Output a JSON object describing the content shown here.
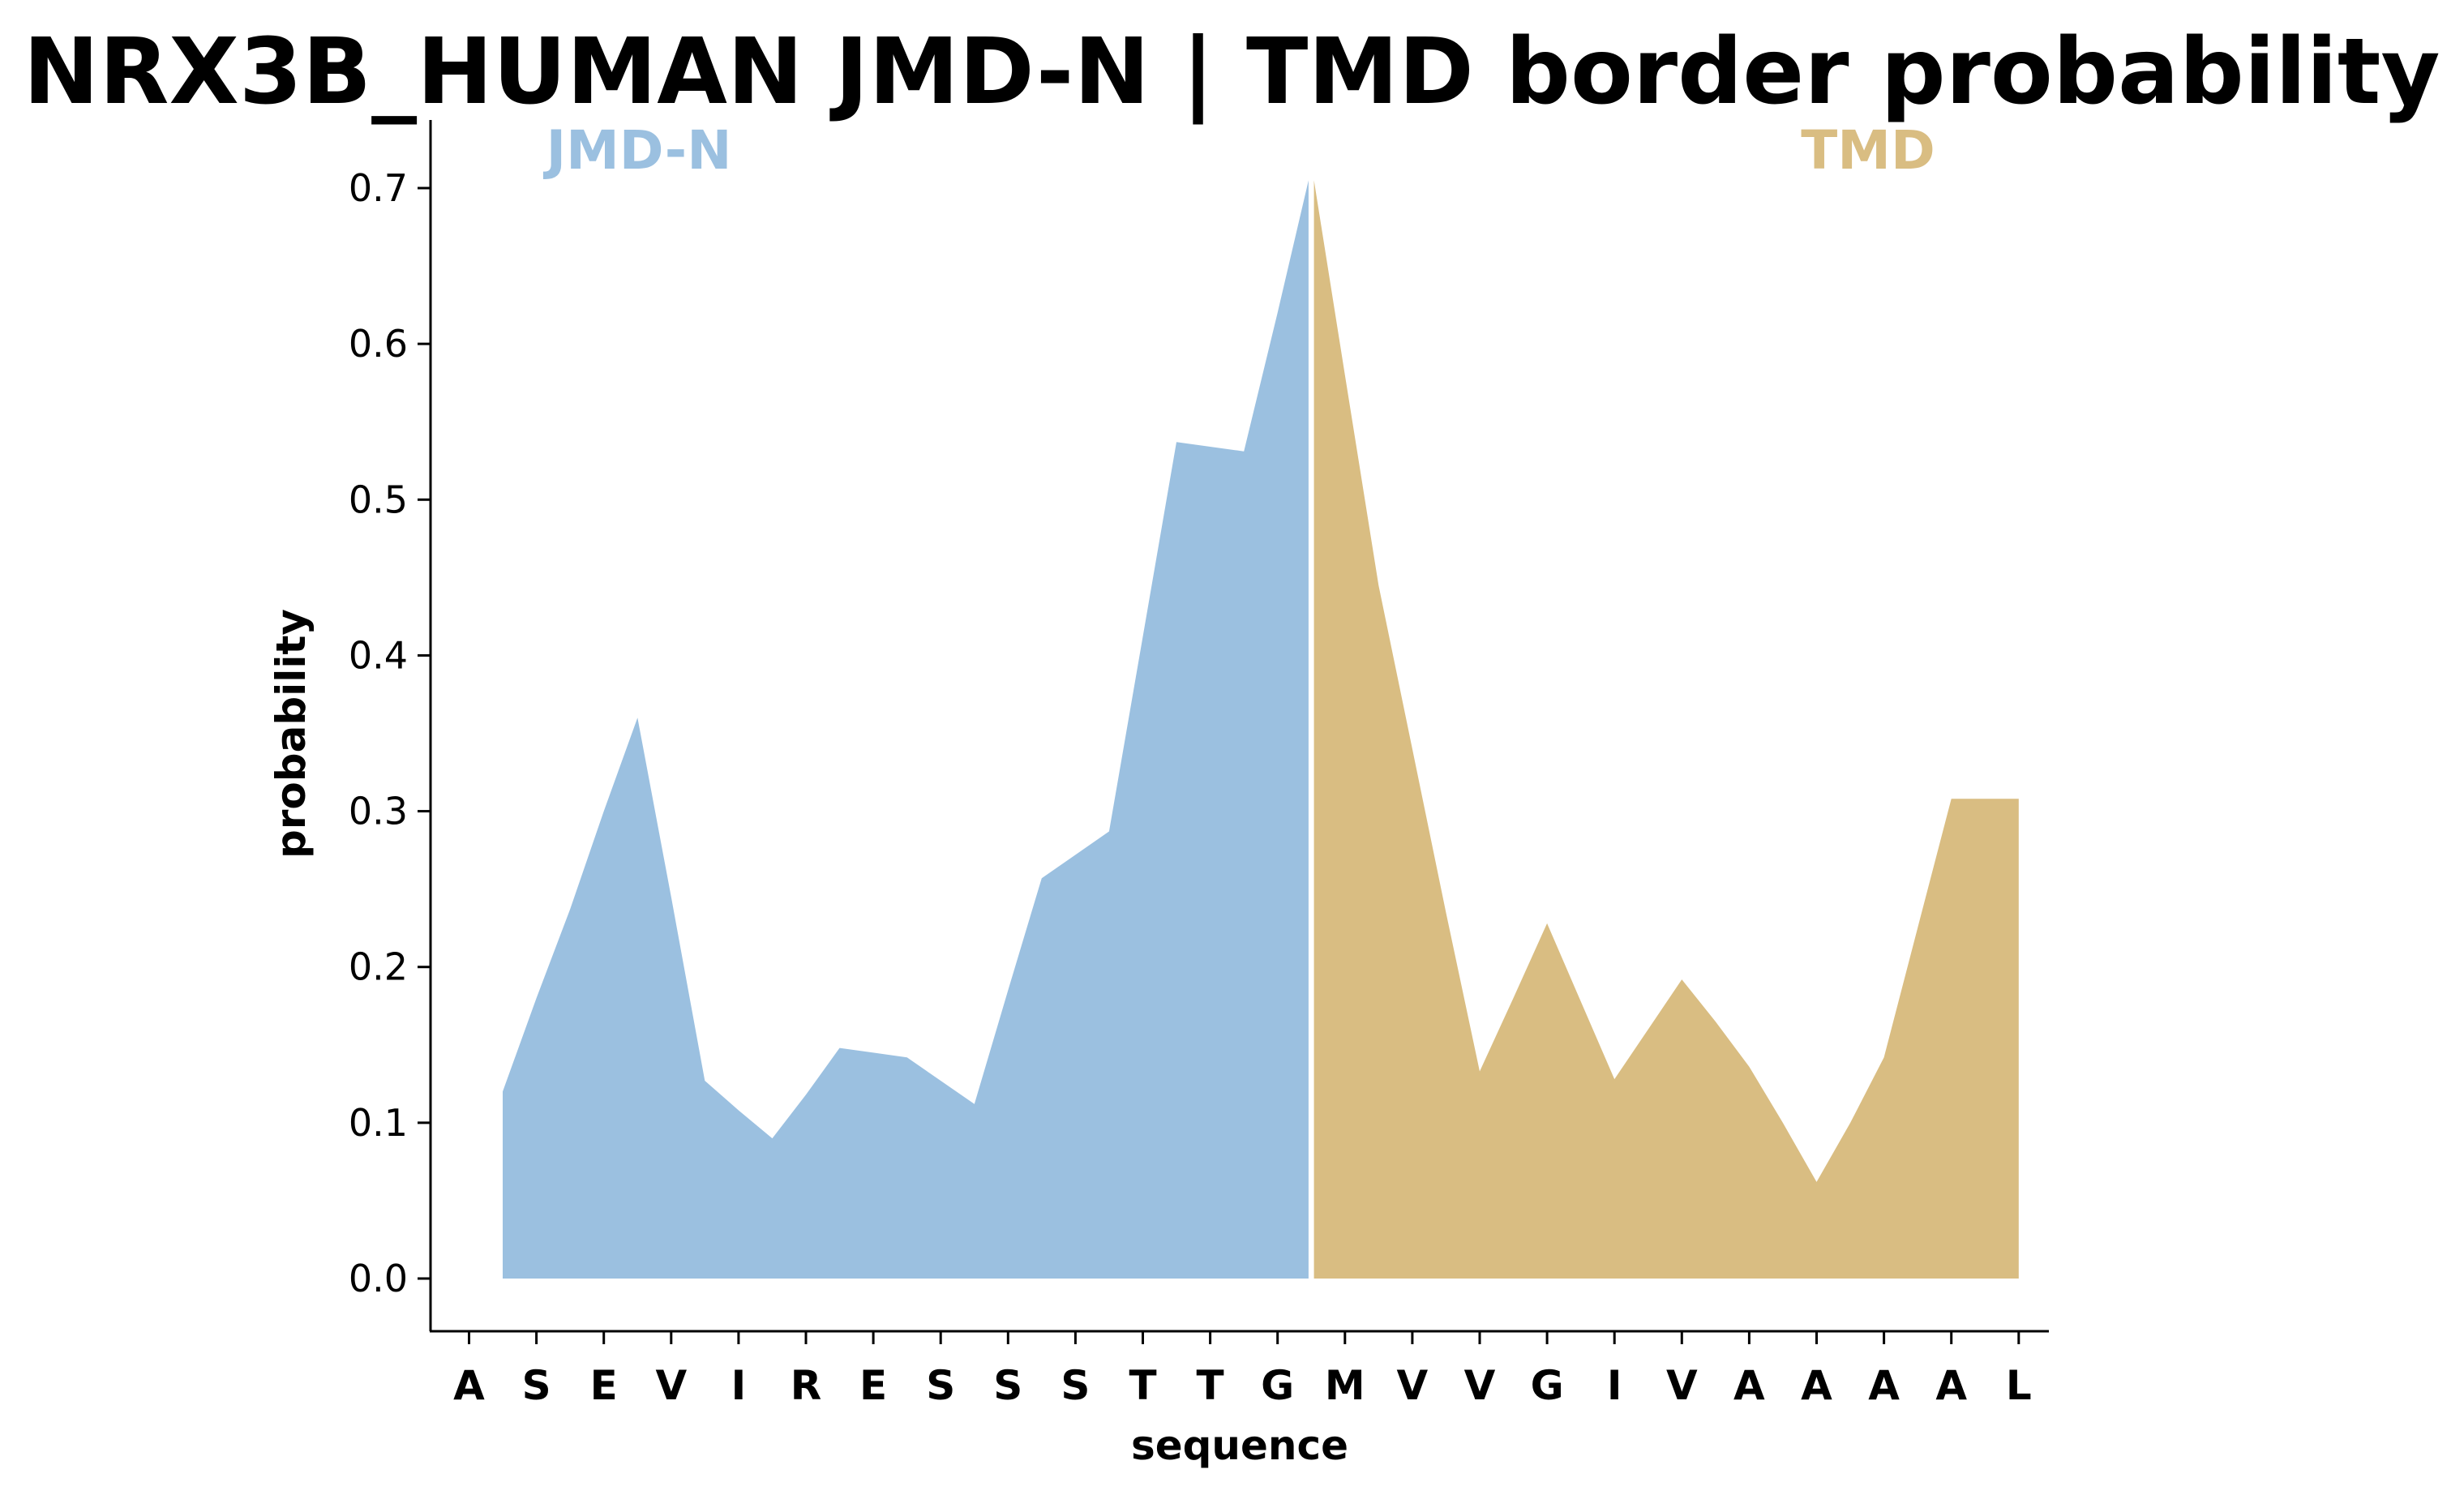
{
  "chart_data": {
    "type": "area",
    "title": "NRX3B_HUMAN JMD-N | TMD border probability",
    "xlabel": "sequence",
    "ylabel": "probability",
    "ylim": [
      -0.035,
      0.74
    ],
    "yticks": [
      "0.0",
      "0.1",
      "0.2",
      "0.3",
      "0.4",
      "0.5",
      "0.6",
      "0.7"
    ],
    "sequence": [
      "A",
      "S",
      "E",
      "V",
      "I",
      "R",
      "E",
      "S",
      "S",
      "S",
      "T",
      "T",
      "G",
      "M",
      "V",
      "V",
      "G",
      "I",
      "V",
      "A",
      "A",
      "A",
      "A",
      "L"
    ],
    "border_position": 12.5,
    "regions": [
      {
        "name": "JMD-N",
        "color": "#9bc0e0"
      },
      {
        "name": "TMD",
        "color": "#d9bd82"
      }
    ],
    "series": [
      {
        "x": [
          0.5,
          1.0,
          1.5,
          2.0,
          2.5,
          3.0,
          3.5,
          4.0,
          4.5,
          5.0,
          5.5,
          6.0,
          6.5,
          7.0,
          7.5,
          8.0,
          8.5,
          9.0,
          9.5,
          10.0,
          10.5,
          11.0,
          11.5,
          12.0,
          12.5,
          13.0,
          13.5,
          14.0,
          14.5,
          15.0,
          15.5,
          16.0,
          16.5,
          17.0,
          17.5,
          18.0,
          18.5,
          19.0,
          19.5,
          20.0,
          20.5,
          21.0,
          21.5,
          22.0,
          22.5,
          23.0
        ],
        "y": [
          0.12,
          0.18,
          0.237,
          0.3,
          0.36,
          0.245,
          0.127,
          0.108,
          0.09,
          0.118,
          0.148,
          0.145,
          0.142,
          0.127,
          0.112,
          0.185,
          0.257,
          0.272,
          0.287,
          0.412,
          0.537,
          0.534,
          0.531,
          0.62,
          0.705,
          0.58,
          0.445,
          0.34,
          0.235,
          0.133,
          0.18,
          0.228,
          0.178,
          0.128,
          0.16,
          0.192,
          0.165,
          0.136,
          0.1,
          0.062,
          0.1,
          0.142,
          0.225,
          0.308,
          0.308,
          0.308
        ]
      }
    ]
  }
}
